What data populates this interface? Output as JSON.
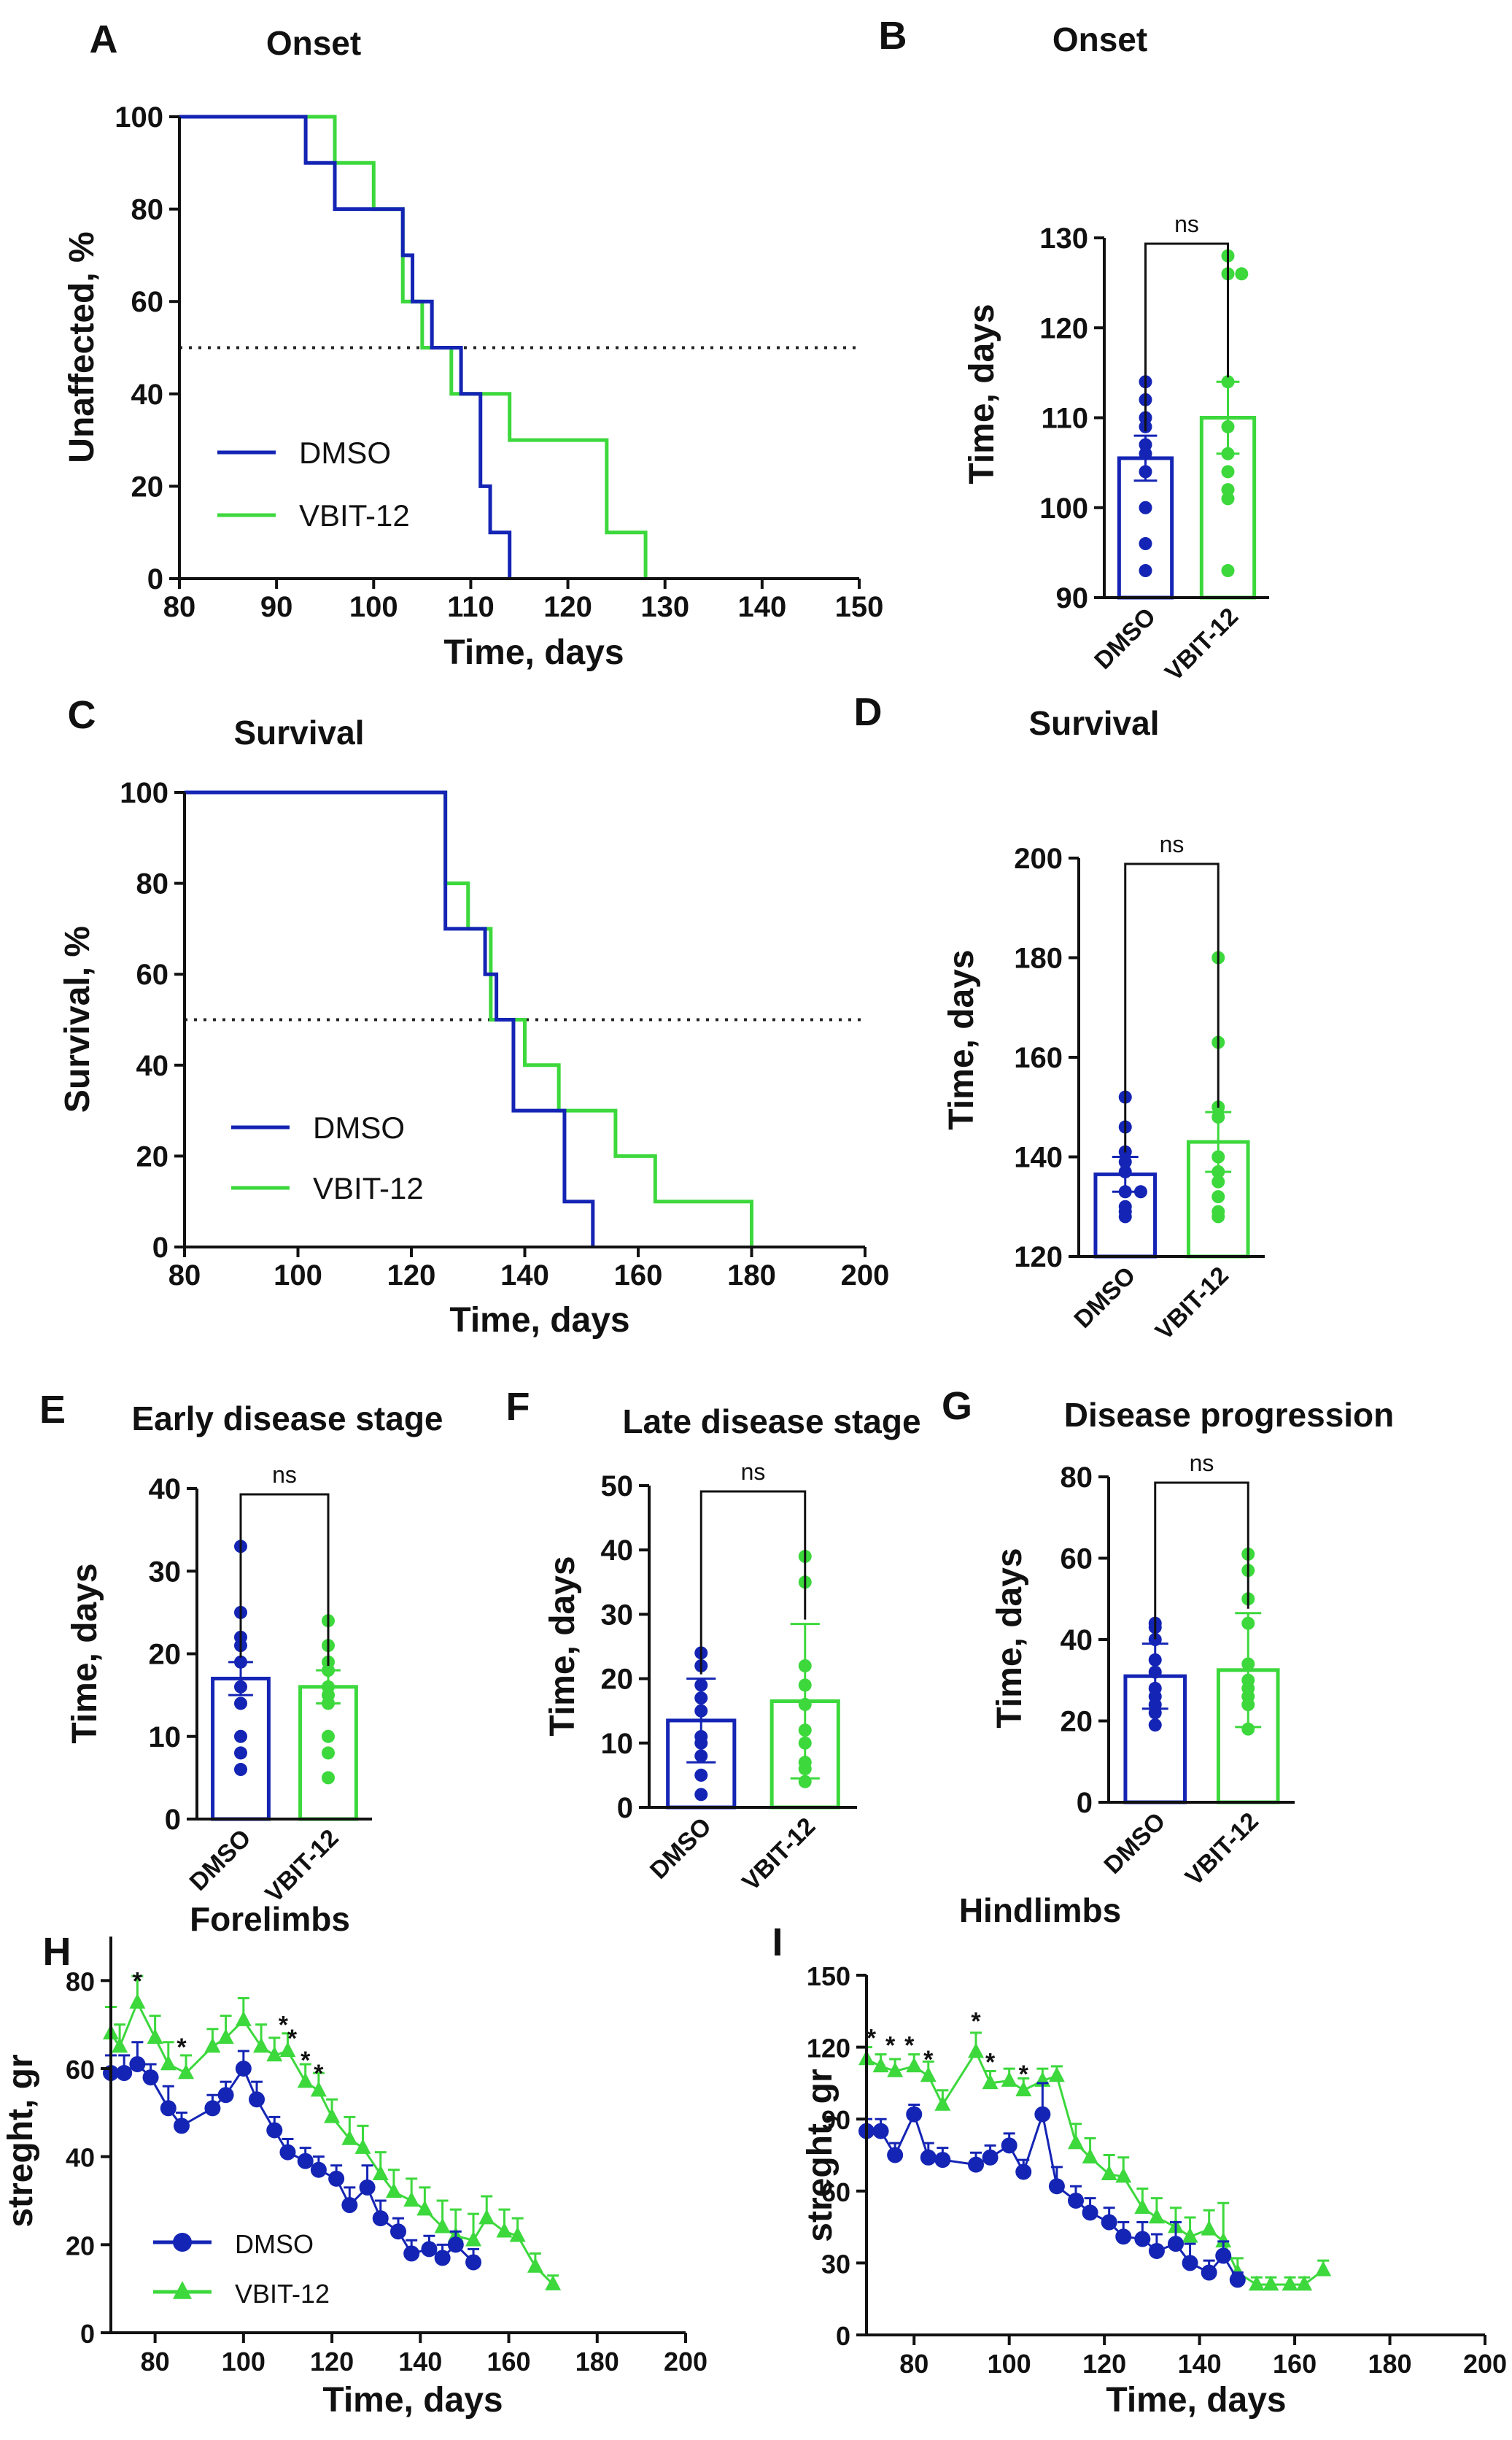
{
  "colors": {
    "dmso": "#1424b4",
    "vbit": "#3cd83c",
    "axis": "#111111"
  },
  "chart_data": [
    {
      "id": "A",
      "type": "line",
      "panel_label": "A",
      "title": "Onset",
      "xlabel": "Time, days",
      "ylabel": "Unaffected, %",
      "xlim": [
        80,
        150
      ],
      "ylim": [
        0,
        100
      ],
      "xticks": [
        80,
        90,
        100,
        110,
        120,
        130,
        140,
        150
      ],
      "yticks": [
        0,
        20,
        40,
        60,
        80,
        100
      ],
      "reference_line_y": 50,
      "legend": "bottom-left",
      "step": true,
      "series": [
        {
          "name": "DMSO",
          "color": "dmso",
          "x": [
            80,
            93,
            96,
            103,
            104,
            106,
            109,
            111,
            112,
            114
          ],
          "y": [
            100,
            90,
            80,
            70,
            60,
            50,
            40,
            20,
            10,
            0
          ]
        },
        {
          "name": "VBIT-12",
          "color": "vbit",
          "x": [
            80,
            96,
            100,
            103,
            105,
            108,
            110,
            114,
            124,
            128
          ],
          "y": [
            100,
            90,
            80,
            60,
            50,
            40,
            40,
            30,
            10,
            0
          ]
        }
      ]
    },
    {
      "id": "B",
      "type": "bar",
      "panel_label": "B",
      "title": "Onset",
      "ylabel": "Time, days",
      "ylim": [
        90,
        130
      ],
      "yticks": [
        90,
        100,
        110,
        120,
        130
      ],
      "categories": [
        "DMSO",
        "VBIT-12"
      ],
      "values": [
        105.5,
        110
      ],
      "errors": [
        2.5,
        4
      ],
      "points": [
        [
          114,
          112,
          110,
          109,
          107,
          106,
          104,
          100,
          96,
          93
        ],
        [
          128,
          126,
          126,
          114,
          109,
          106,
          104,
          102,
          101,
          93
        ]
      ],
      "significance": "ns"
    },
    {
      "id": "C",
      "type": "line",
      "panel_label": "C",
      "title": "Survival",
      "xlabel": "Time, days",
      "ylabel": "Survival, %",
      "xlim": [
        80,
        200
      ],
      "ylim": [
        0,
        100
      ],
      "xticks": [
        80,
        100,
        120,
        140,
        160,
        180,
        200
      ],
      "yticks": [
        0,
        20,
        40,
        60,
        80,
        100
      ],
      "reference_line_y": 50,
      "legend": "bottom-left",
      "step": true,
      "series": [
        {
          "name": "DMSO",
          "color": "dmso",
          "x": [
            80,
            126,
            133,
            135,
            138,
            147,
            150,
            152
          ],
          "y": [
            100,
            70,
            60,
            50,
            30,
            10,
            10,
            0
          ]
        },
        {
          "name": "VBIT-12",
          "color": "vbit",
          "x": [
            80,
            126,
            130,
            134,
            137,
            140,
            146,
            148,
            156,
            163,
            180
          ],
          "y": [
            100,
            80,
            70,
            50,
            50,
            40,
            30,
            30,
            20,
            10,
            0
          ]
        }
      ]
    },
    {
      "id": "D",
      "type": "bar",
      "panel_label": "D",
      "title": "Survival",
      "ylabel": "Time, days",
      "ylim": [
        120,
        200
      ],
      "yticks": [
        120,
        140,
        160,
        180,
        200
      ],
      "categories": [
        "DMSO",
        "VBIT-12"
      ],
      "values": [
        136.5,
        143
      ],
      "errors": [
        3.5,
        6
      ],
      "points": [
        [
          152,
          146,
          141,
          139,
          137,
          133,
          133,
          130,
          129,
          128
        ],
        [
          180,
          163,
          150,
          148,
          140,
          137,
          135,
          132,
          129,
          128
        ]
      ],
      "significance": "ns"
    },
    {
      "id": "E",
      "type": "bar",
      "panel_label": "E",
      "title": "Early disease stage",
      "ylabel": "Time, days",
      "ylim": [
        0,
        40
      ],
      "yticks": [
        0,
        10,
        20,
        30,
        40
      ],
      "categories": [
        "DMSO",
        "VBIT-12"
      ],
      "values": [
        17,
        16
      ],
      "errors": [
        2,
        2
      ],
      "points": [
        [
          33,
          25,
          22,
          21,
          19,
          16,
          14,
          10,
          8,
          6
        ],
        [
          24,
          21,
          19,
          18,
          16,
          15,
          14,
          10,
          8,
          5
        ]
      ],
      "significance": "ns"
    },
    {
      "id": "F",
      "type": "bar",
      "panel_label": "F",
      "title": "Late disease stage",
      "ylabel": "Time, days",
      "ylim": [
        0,
        50
      ],
      "yticks": [
        0,
        10,
        20,
        30,
        40,
        50
      ],
      "categories": [
        "DMSO",
        "VBIT-12"
      ],
      "values": [
        13.5,
        16.5
      ],
      "errors": [
        6.5,
        12
      ],
      "points": [
        [
          24,
          22,
          19,
          17,
          15,
          11,
          10,
          8,
          5,
          2
        ],
        [
          39,
          35,
          22,
          19,
          16,
          12,
          10,
          7,
          6,
          4
        ]
      ],
      "significance": "ns"
    },
    {
      "id": "G",
      "type": "bar",
      "panel_label": "G",
      "title": "Disease progression",
      "ylabel": "Time, days",
      "ylim": [
        0,
        80
      ],
      "yticks": [
        0,
        20,
        40,
        60,
        80
      ],
      "categories": [
        "DMSO",
        "VBIT-12"
      ],
      "values": [
        31,
        32.5
      ],
      "errors": [
        8,
        14
      ],
      "points": [
        [
          44,
          43,
          40,
          35,
          32,
          28,
          26,
          24,
          22,
          19
        ],
        [
          61,
          57,
          50,
          44,
          34,
          30,
          28,
          26,
          24,
          18
        ]
      ],
      "significance": "ns"
    },
    {
      "id": "H",
      "type": "line",
      "panel_label": "H",
      "title": "Forelimbs",
      "xlabel": "Time, days",
      "ylabel": "streght, gr",
      "xlim": [
        70,
        200
      ],
      "ylim": [
        0,
        90
      ],
      "xticks": [
        80,
        100,
        120,
        140,
        160,
        180,
        200
      ],
      "yticks": [
        0,
        20,
        40,
        60,
        80
      ],
      "legend": "bottom-left",
      "markers": true,
      "series": [
        {
          "name": "DMSO",
          "color": "dmso",
          "marker": "circle",
          "x": [
            70,
            73,
            76,
            79,
            83,
            86,
            93,
            96,
            100,
            103,
            107,
            110,
            114,
            117,
            121,
            124,
            128,
            131,
            135,
            138,
            142,
            145,
            148,
            152
          ],
          "y": [
            59,
            59,
            61,
            58,
            51,
            47,
            51,
            54,
            60,
            53,
            46,
            41,
            39,
            37,
            35,
            29,
            33,
            26,
            23,
            18,
            19,
            17,
            20,
            16
          ],
          "err": [
            4,
            4,
            5,
            3,
            5,
            3,
            3,
            3,
            4,
            4,
            3,
            3,
            3,
            3,
            3,
            4,
            5,
            4,
            3,
            3,
            3,
            3,
            3,
            3
          ]
        },
        {
          "name": "VBIT-12",
          "color": "vbit",
          "marker": "triangle",
          "x": [
            70,
            72,
            76,
            80,
            83,
            87,
            93,
            96,
            100,
            104,
            107,
            110,
            114,
            117,
            120,
            124,
            127,
            131,
            134,
            138,
            141,
            145,
            148,
            152,
            155,
            159,
            162,
            166,
            170
          ],
          "y": [
            68,
            65,
            75,
            67,
            61,
            59,
            65,
            67,
            71,
            65,
            63,
            64,
            57,
            55,
            49,
            44,
            42,
            36,
            32,
            30,
            28,
            24,
            22,
            21,
            26,
            23,
            22,
            15,
            11
          ],
          "err": [
            6,
            5,
            6,
            5,
            5,
            4,
            4,
            5,
            5,
            5,
            4,
            4,
            4,
            4,
            4,
            5,
            5,
            5,
            5,
            5,
            5,
            6,
            6,
            6,
            5,
            5,
            4,
            3,
            2
          ]
        }
      ],
      "annotations": [
        {
          "text": "*",
          "x": 76,
          "y": 80
        },
        {
          "text": "*",
          "x": 86,
          "y": 65
        },
        {
          "text": "*",
          "x": 109,
          "y": 70
        },
        {
          "text": "*",
          "x": 111,
          "y": 67
        },
        {
          "text": "*",
          "x": 114,
          "y": 62
        },
        {
          "text": "*",
          "x": 117,
          "y": 59
        }
      ]
    },
    {
      "id": "I",
      "type": "line",
      "panel_label": "I",
      "title": "Hindlimbs",
      "xlabel": "Time, days",
      "ylabel": "streght, gr",
      "xlim": [
        70,
        200
      ],
      "ylim": [
        0,
        150
      ],
      "xticks": [
        80,
        100,
        120,
        140,
        160,
        180,
        200
      ],
      "yticks": [
        0,
        30,
        60,
        90,
        120,
        150
      ],
      "markers": true,
      "series": [
        {
          "name": "DMSO",
          "color": "dmso",
          "marker": "circle",
          "x": [
            70,
            73,
            76,
            80,
            83,
            86,
            93,
            96,
            100,
            103,
            107,
            110,
            114,
            117,
            121,
            124,
            128,
            131,
            135,
            138,
            142,
            145,
            148
          ],
          "y": [
            85,
            85,
            75,
            92,
            74,
            73,
            71,
            74,
            79,
            68,
            92,
            62,
            56,
            51,
            47,
            41,
            40,
            35,
            38,
            30,
            26,
            33,
            23
          ],
          "err": [
            5,
            5,
            5,
            4,
            6,
            5,
            5,
            5,
            5,
            5,
            13,
            8,
            6,
            6,
            6,
            6,
            7,
            7,
            9,
            8,
            5,
            6,
            3
          ]
        },
        {
          "name": "VBIT-12",
          "color": "vbit",
          "marker": "triangle",
          "x": [
            70,
            73,
            76,
            80,
            83,
            86,
            93,
            96,
            100,
            103,
            107,
            110,
            114,
            117,
            121,
            124,
            128,
            131,
            135,
            138,
            142,
            145,
            148,
            152,
            155,
            159,
            162,
            166
          ],
          "y": [
            115,
            112,
            110,
            112,
            108,
            96,
            118,
            105,
            106,
            102,
            106,
            108,
            80,
            74,
            67,
            66,
            53,
            49,
            45,
            41,
            44,
            39,
            26,
            21,
            21,
            21,
            21,
            27
          ],
          "err": [
            5,
            5,
            5,
            5,
            6,
            6,
            8,
            5,
            5,
            5,
            5,
            4,
            8,
            8,
            8,
            8,
            8,
            8,
            8,
            8,
            8,
            16,
            6,
            3,
            3,
            3,
            3,
            4
          ]
        }
      ],
      "annotations": [
        {
          "text": "*",
          "x": 71,
          "y": 124
        },
        {
          "text": "*",
          "x": 75,
          "y": 121
        },
        {
          "text": "*",
          "x": 79,
          "y": 121
        },
        {
          "text": "*",
          "x": 83,
          "y": 115
        },
        {
          "text": "*",
          "x": 93,
          "y": 131
        },
        {
          "text": "*",
          "x": 96,
          "y": 114
        },
        {
          "text": "*",
          "x": 103,
          "y": 109
        }
      ]
    }
  ]
}
